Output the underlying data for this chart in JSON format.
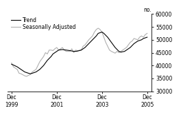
{
  "ylabel": "no.",
  "ylim": [
    30000,
    60000
  ],
  "xlim_start": 1999.75,
  "xlim_end": 2006.1,
  "yticks": [
    30000,
    35000,
    40000,
    45000,
    50000,
    55000,
    60000
  ],
  "xtick_positions": [
    1999.917,
    2001.917,
    2003.917,
    2005.917
  ],
  "xtick_labels": [
    "Dec\n1999",
    "Dec\n2001",
    "Dec\n2003",
    "Dec\n2005"
  ],
  "legend_entries": [
    "Trend",
    "Seasonally Adjusted"
  ],
  "trend_color": "#000000",
  "seasonal_color": "#b0b0b0",
  "background_color": "#ffffff",
  "trend_lw": 0.8,
  "seasonal_lw": 0.8,
  "trend_data": [
    [
      1999.917,
      40500
    ],
    [
      2000.0,
      40200
    ],
    [
      2000.167,
      39500
    ],
    [
      2000.333,
      38500
    ],
    [
      2000.5,
      37500
    ],
    [
      2000.667,
      37000
    ],
    [
      2000.75,
      36800
    ],
    [
      2000.833,
      37000
    ],
    [
      2001.0,
      37500
    ],
    [
      2001.167,
      38500
    ],
    [
      2001.333,
      40000
    ],
    [
      2001.5,
      42000
    ],
    [
      2001.667,
      43500
    ],
    [
      2001.75,
      44500
    ],
    [
      2001.917,
      45500
    ],
    [
      2002.0,
      46000
    ],
    [
      2002.167,
      46200
    ],
    [
      2002.333,
      46000
    ],
    [
      2002.5,
      45800
    ],
    [
      2002.667,
      45500
    ],
    [
      2002.75,
      45500
    ],
    [
      2002.833,
      45600
    ],
    [
      2003.0,
      46000
    ],
    [
      2003.167,
      47000
    ],
    [
      2003.333,
      48500
    ],
    [
      2003.5,
      50000
    ],
    [
      2003.667,
      51500
    ],
    [
      2003.75,
      52500
    ],
    [
      2003.917,
      53000
    ],
    [
      2004.0,
      52500
    ],
    [
      2004.167,
      51000
    ],
    [
      2004.333,
      49000
    ],
    [
      2004.5,
      47000
    ],
    [
      2004.667,
      45500
    ],
    [
      2004.75,
      45200
    ],
    [
      2004.917,
      45500
    ],
    [
      2005.0,
      46000
    ],
    [
      2005.167,
      47000
    ],
    [
      2005.333,
      48500
    ],
    [
      2005.5,
      49500
    ],
    [
      2005.667,
      50000
    ],
    [
      2005.75,
      50500
    ],
    [
      2005.917,
      51000
    ]
  ],
  "seasonal_data": [
    [
      1999.917,
      41000
    ],
    [
      2000.0,
      39500
    ],
    [
      2000.167,
      38500
    ],
    [
      2000.25,
      37000
    ],
    [
      2000.333,
      36800
    ],
    [
      2000.5,
      36000
    ],
    [
      2000.583,
      35800
    ],
    [
      2000.667,
      36200
    ],
    [
      2000.75,
      36500
    ],
    [
      2000.833,
      37500
    ],
    [
      2001.0,
      38500
    ],
    [
      2001.083,
      40000
    ],
    [
      2001.167,
      41500
    ],
    [
      2001.333,
      43500
    ],
    [
      2001.417,
      45000
    ],
    [
      2001.5,
      44500
    ],
    [
      2001.583,
      46000
    ],
    [
      2001.667,
      46000
    ],
    [
      2001.75,
      45800
    ],
    [
      2001.833,
      46500
    ],
    [
      2001.917,
      47000
    ],
    [
      2002.0,
      46000
    ],
    [
      2002.083,
      46500
    ],
    [
      2002.167,
      47000
    ],
    [
      2002.25,
      46000
    ],
    [
      2002.333,
      45500
    ],
    [
      2002.5,
      45500
    ],
    [
      2002.583,
      46500
    ],
    [
      2002.667,
      45000
    ],
    [
      2002.75,
      46000
    ],
    [
      2002.833,
      45800
    ],
    [
      2003.0,
      46000
    ],
    [
      2003.083,
      47500
    ],
    [
      2003.167,
      48000
    ],
    [
      2003.25,
      49000
    ],
    [
      2003.333,
      50000
    ],
    [
      2003.5,
      51500
    ],
    [
      2003.583,
      53000
    ],
    [
      2003.667,
      54000
    ],
    [
      2003.75,
      54500
    ],
    [
      2003.833,
      54000
    ],
    [
      2003.917,
      53000
    ],
    [
      2004.0,
      51000
    ],
    [
      2004.083,
      49000
    ],
    [
      2004.167,
      47500
    ],
    [
      2004.25,
      46000
    ],
    [
      2004.333,
      45500
    ],
    [
      2004.5,
      44800
    ],
    [
      2004.583,
      45500
    ],
    [
      2004.667,
      45000
    ],
    [
      2004.75,
      45500
    ],
    [
      2004.833,
      46000
    ],
    [
      2004.917,
      46500
    ],
    [
      2005.0,
      47000
    ],
    [
      2005.083,
      48000
    ],
    [
      2005.167,
      49000
    ],
    [
      2005.25,
      49500
    ],
    [
      2005.333,
      50500
    ],
    [
      2005.5,
      50000
    ],
    [
      2005.583,
      51000
    ],
    [
      2005.667,
      51500
    ],
    [
      2005.75,
      51000
    ],
    [
      2005.833,
      52000
    ],
    [
      2005.917,
      52500
    ]
  ]
}
